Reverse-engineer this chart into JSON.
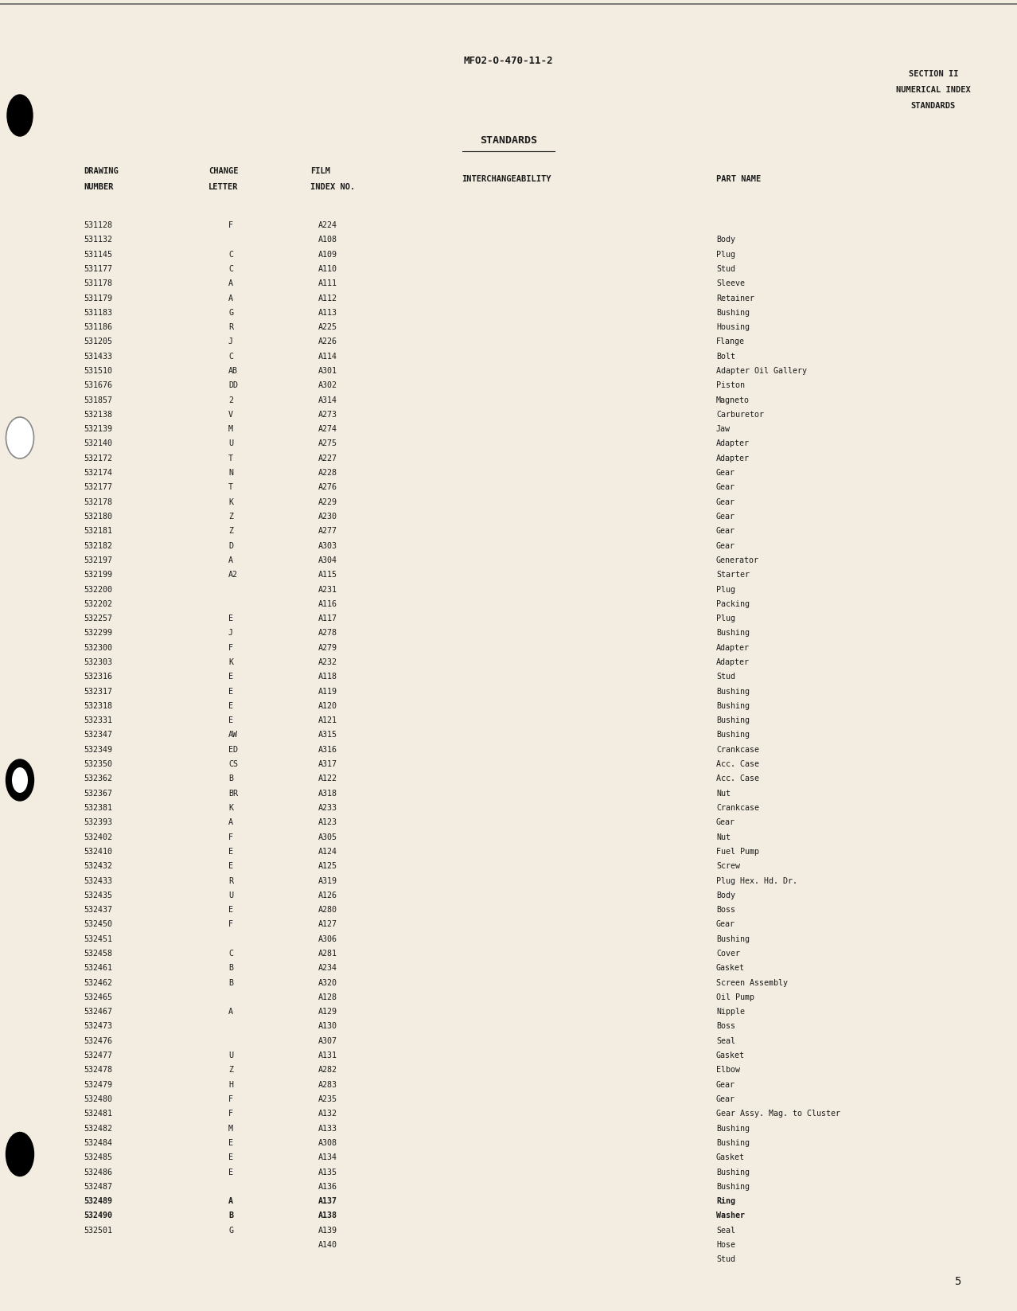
{
  "page_header": "MFO2-O-470-11-2",
  "section_header_line1": "SECTION II",
  "section_header_line2": "NUMERICAL INDEX",
  "section_header_line3": "STANDARDS",
  "section_title": "STANDARDS",
  "page_number": "5",
  "rows": [
    [
      "531128",
      "F",
      "A224",
      "",
      ""
    ],
    [
      "531132",
      "",
      "A108",
      "",
      "Body"
    ],
    [
      "531145",
      "C",
      "A109",
      "",
      "Plug"
    ],
    [
      "531177",
      "C",
      "A110",
      "",
      "Stud"
    ],
    [
      "531178",
      "A",
      "A111",
      "",
      "Sleeve"
    ],
    [
      "531179",
      "A",
      "A112",
      "",
      "Retainer"
    ],
    [
      "531183",
      "G",
      "A113",
      "",
      "Bushing"
    ],
    [
      "531186",
      "R",
      "A225",
      "",
      "Housing"
    ],
    [
      "531205",
      "J",
      "A226",
      "",
      "Flange"
    ],
    [
      "531433",
      "C",
      "A114",
      "",
      "Bolt"
    ],
    [
      "531510",
      "AB",
      "A301",
      "",
      "Adapter Oil Gallery"
    ],
    [
      "531676",
      "DD",
      "A302",
      "",
      "Piston"
    ],
    [
      "531857",
      "2",
      "A314",
      "",
      "Magneto"
    ],
    [
      "532138",
      "V",
      "A273",
      "",
      "Carburetor"
    ],
    [
      "532139",
      "M",
      "A274",
      "",
      "Jaw"
    ],
    [
      "532140",
      "U",
      "A275",
      "",
      "Adapter"
    ],
    [
      "532172",
      "T",
      "A227",
      "",
      "Adapter"
    ],
    [
      "532174",
      "N",
      "A228",
      "",
      "Gear"
    ],
    [
      "532177",
      "T",
      "A276",
      "",
      "Gear"
    ],
    [
      "532178",
      "K",
      "A229",
      "",
      "Gear"
    ],
    [
      "532180",
      "Z",
      "A230",
      "",
      "Gear"
    ],
    [
      "532181",
      "Z",
      "A277",
      "",
      "Gear"
    ],
    [
      "532182",
      "D",
      "A303",
      "",
      "Gear"
    ],
    [
      "532197",
      "A",
      "A304",
      "",
      "Generator"
    ],
    [
      "532199",
      "A2",
      "A115",
      "",
      "Starter"
    ],
    [
      "532200",
      "",
      "A231",
      "",
      "Plug"
    ],
    [
      "532202",
      "",
      "A116",
      "",
      "Packing"
    ],
    [
      "532257",
      "E",
      "A117",
      "",
      "Plug"
    ],
    [
      "532299",
      "J",
      "A278",
      "",
      "Bushing"
    ],
    [
      "532300",
      "F",
      "A279",
      "",
      "Adapter"
    ],
    [
      "532303",
      "K",
      "A232",
      "",
      "Adapter"
    ],
    [
      "532316",
      "E",
      "A118",
      "",
      "Stud"
    ],
    [
      "532317",
      "E",
      "A119",
      "",
      "Bushing"
    ],
    [
      "532318",
      "E",
      "A120",
      "",
      "Bushing"
    ],
    [
      "532331",
      "E",
      "A121",
      "",
      "Bushing"
    ],
    [
      "532347",
      "AW",
      "A315",
      "",
      "Bushing"
    ],
    [
      "532349",
      "ED",
      "A316",
      "",
      "Crankcase"
    ],
    [
      "532350",
      "CS",
      "A317",
      "",
      "Acc. Case"
    ],
    [
      "532362",
      "B",
      "A122",
      "",
      "Acc. Case"
    ],
    [
      "532367",
      "BR",
      "A318",
      "",
      "Nut"
    ],
    [
      "532381",
      "K",
      "A233",
      "",
      "Crankcase"
    ],
    [
      "532393",
      "A",
      "A123",
      "",
      "Gear"
    ],
    [
      "532402",
      "F",
      "A305",
      "",
      "Nut"
    ],
    [
      "532410",
      "E",
      "A124",
      "",
      "Fuel Pump"
    ],
    [
      "532432",
      "E",
      "A125",
      "",
      "Screw"
    ],
    [
      "532433",
      "R",
      "A319",
      "",
      "Plug Hex. Hd. Dr."
    ],
    [
      "532435",
      "U",
      "A126",
      "",
      "Body"
    ],
    [
      "532437",
      "E",
      "A280",
      "",
      "Boss"
    ],
    [
      "532450",
      "F",
      "A127",
      "",
      "Gear"
    ],
    [
      "532451",
      "",
      "A306",
      "",
      "Bushing"
    ],
    [
      "532458",
      "C",
      "A281",
      "",
      "Cover"
    ],
    [
      "532461",
      "B",
      "A234",
      "",
      "Gasket"
    ],
    [
      "532462",
      "B",
      "A320",
      "",
      "Screen Assembly"
    ],
    [
      "532465",
      "",
      "A128",
      "",
      "Oil Pump"
    ],
    [
      "532467",
      "A",
      "A129",
      "",
      "Nipple"
    ],
    [
      "532473",
      "",
      "A130",
      "",
      "Boss"
    ],
    [
      "532476",
      "",
      "A307",
      "",
      "Seal"
    ],
    [
      "532477",
      "U",
      "A131",
      "",
      "Gasket"
    ],
    [
      "532478",
      "Z",
      "A282",
      "",
      "Elbow"
    ],
    [
      "532479",
      "H",
      "A283",
      "",
      "Gear"
    ],
    [
      "532480",
      "F",
      "A235",
      "",
      "Gear"
    ],
    [
      "532481",
      "F",
      "A132",
      "",
      "Gear Assy. Mag. to Cluster"
    ],
    [
      "532482",
      "M",
      "A133",
      "",
      "Bushing"
    ],
    [
      "532484",
      "E",
      "A308",
      "",
      "Bushing"
    ],
    [
      "532485",
      "E",
      "A134",
      "",
      "Gasket"
    ],
    [
      "532486",
      "E",
      "A135",
      "",
      "Bushing"
    ],
    [
      "532487",
      "",
      "A136",
      "",
      "Bushing"
    ],
    [
      "532489",
      "A",
      "A137",
      "",
      "Ring"
    ],
    [
      "532490",
      "B",
      "A138",
      "",
      "Washer"
    ],
    [
      "532501",
      "G",
      "A139",
      "",
      "Seal"
    ],
    [
      "",
      "",
      "A140",
      "",
      "Hose"
    ],
    [
      "",
      "",
      "",
      "",
      "Stud"
    ]
  ],
  "bold_rows": [
    "532490",
    "532489"
  ],
  "background_color": "#f2ede0",
  "text_color": "#1a1a1a"
}
